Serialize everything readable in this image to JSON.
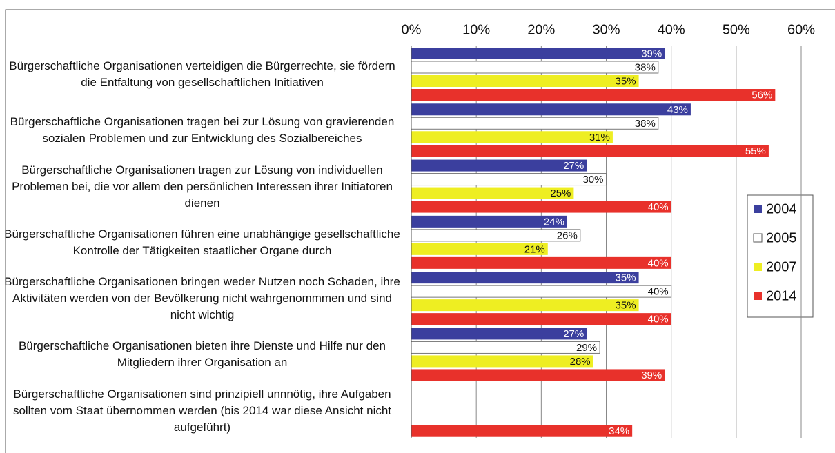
{
  "chart_data": {
    "type": "bar",
    "orientation": "horizontal",
    "categories": [
      "Bürgerschaftliche Organisationen verteidigen die Bürgerrechte, sie fördern die Entfaltung von gesellschaftlichen Initiativen",
      "Bürgerschaftliche Organisationen tragen bei zur Lösung von gravierenden sozialen Problemen und zur Entwicklung des Sozialbereiches",
      "Bürgerschaftliche Organisationen tragen zur Lösung von individuellen Problemen bei, die vor allem den persönlichen Interessen ihrer Initiatoren dienen",
      "Bürgerschaftliche Organisationen führen eine unabhängige gesellschaftliche Kontrolle der Tätigkeiten staatlicher Organe durch",
      "Bürgerschaftliche Organisationen bringen weder Nutzen noch Schaden, ihre Aktivitäten werden von der Bevölkerung nicht wahrgenommmen und sind nicht wichtig",
      "Bürgerschaftliche Organisationen bieten ihre Dienste und Hilfe nur den Mitgliedern ihrer Organisation an",
      "Bürgerschaftliche Organisationen sind prinzipiell unnnötig, ihre Aufgaben sollten vom Staat übernommen werden (bis 2014 war diese Ansicht nicht aufgeführt)"
    ],
    "series": [
      {
        "name": "2004",
        "color": "#3b3f9e",
        "values": [
          39,
          43,
          27,
          24,
          35,
          27,
          null
        ],
        "value_labels": [
          "39%",
          "43%",
          "27%",
          "24%",
          "35%",
          "27%",
          null
        ]
      },
      {
        "name": "2005",
        "color": "#ffffff",
        "values": [
          38,
          38,
          30,
          26,
          40,
          29,
          null
        ],
        "value_labels": [
          "38%",
          "38%",
          "30%",
          "26%",
          "40%",
          "29%",
          null
        ]
      },
      {
        "name": "2007",
        "color": "#eeee22",
        "values": [
          35,
          31,
          25,
          21,
          35,
          28,
          null
        ],
        "value_labels": [
          "35%",
          "31%",
          "25%",
          "21%",
          "35%",
          "28%",
          null
        ]
      },
      {
        "name": "2014",
        "color": "#e8312b",
        "values": [
          56,
          55,
          40,
          40,
          40,
          39,
          34
        ],
        "value_labels": [
          "56%",
          "55%",
          "40%",
          "40%",
          "40%",
          "39%",
          "34%"
        ]
      }
    ],
    "xlim": [
      0,
      60
    ],
    "xticks": [
      {
        "value": 0,
        "label": "0%"
      },
      {
        "value": 10,
        "label": "10%"
      },
      {
        "value": 20,
        "label": "20%"
      },
      {
        "value": 30,
        "label": "30%"
      },
      {
        "value": 40,
        "label": "40%"
      },
      {
        "value": 50,
        "label": "50%"
      },
      {
        "value": 60,
        "label": "60%"
      }
    ],
    "grid": true,
    "legend": "right"
  }
}
